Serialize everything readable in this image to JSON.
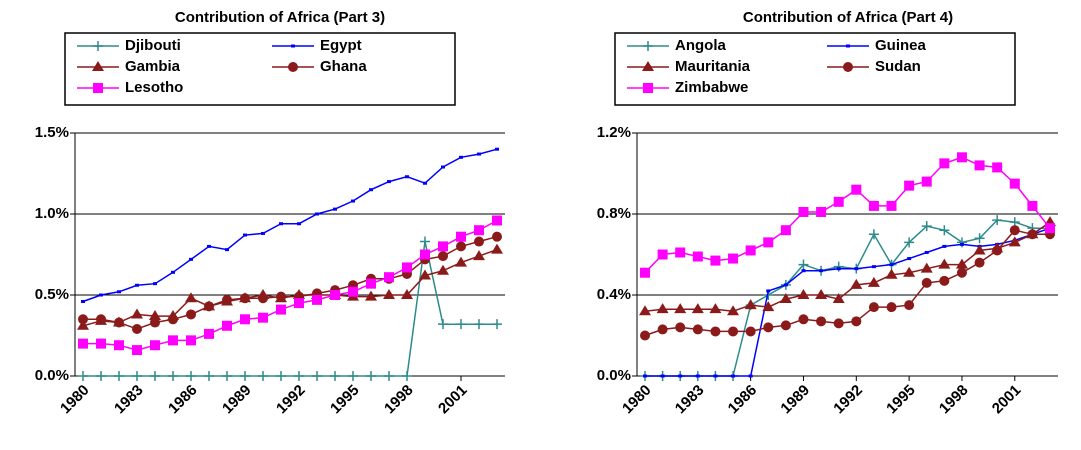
{
  "chart_data": [
    {
      "type": "line",
      "title": "Contribution of Africa (Part 3)",
      "categories": [
        "1980",
        null,
        null,
        "1983",
        null,
        null,
        "1986",
        null,
        null,
        "1989",
        null,
        null,
        "1992",
        null,
        null,
        "1995",
        null,
        null,
        "1998",
        null,
        null,
        "2001",
        null,
        null
      ],
      "ylim": [
        0,
        1.5
      ],
      "yticks": [
        {
          "value": 0,
          "label": "0.0%"
        },
        {
          "value": 0.5,
          "label": "0.5%"
        },
        {
          "value": 1.0,
          "label": "1.0%"
        },
        {
          "value": 1.5,
          "label": "1.5%"
        }
      ],
      "grid": true,
      "series": [
        {
          "name": "Djibouti",
          "color": "#2e8b8b",
          "marker": "plus",
          "values": [
            0,
            0,
            0,
            0,
            0,
            0,
            0,
            0,
            0,
            0,
            0,
            0,
            0,
            0,
            0,
            0,
            0,
            0,
            0,
            0.83,
            0.32,
            0.32,
            0.32,
            0.32
          ]
        },
        {
          "name": "Egypt",
          "color": "#0000ff",
          "marker": "dash",
          "values": [
            0.46,
            0.5,
            0.52,
            0.56,
            0.57,
            0.64,
            0.72,
            0.8,
            0.78,
            0.87,
            0.88,
            0.94,
            0.94,
            1.0,
            1.03,
            1.08,
            1.15,
            1.2,
            1.23,
            1.19,
            1.29,
            1.35,
            1.37,
            1.4
          ]
        },
        {
          "name": "Gambia",
          "color": "#8b1a1a",
          "marker": "triangle",
          "values": [
            0.31,
            0.34,
            0.33,
            0.38,
            0.37,
            0.37,
            0.48,
            0.43,
            0.46,
            0.48,
            0.5,
            0.48,
            0.5,
            0.5,
            0.5,
            0.49,
            0.49,
            0.5,
            0.5,
            0.62,
            0.65,
            0.7,
            0.74,
            0.78
          ]
        },
        {
          "name": "Ghana",
          "color": "#8b1a1a",
          "marker": "circle",
          "values": [
            0.35,
            0.35,
            0.33,
            0.29,
            0.33,
            0.35,
            0.38,
            0.43,
            0.47,
            0.48,
            0.48,
            0.49,
            0.49,
            0.51,
            0.53,
            0.56,
            0.6,
            0.6,
            0.63,
            0.72,
            0.74,
            0.8,
            0.83,
            0.86
          ]
        },
        {
          "name": "Lesotho",
          "color": "#ff00ff",
          "marker": "square",
          "values": [
            0.2,
            0.2,
            0.19,
            0.16,
            0.19,
            0.22,
            0.22,
            0.26,
            0.31,
            0.35,
            0.36,
            0.41,
            0.45,
            0.47,
            0.5,
            0.52,
            0.57,
            0.61,
            0.67,
            0.75,
            0.8,
            0.86,
            0.9,
            0.96
          ]
        }
      ]
    },
    {
      "type": "line",
      "title": "Contribution of Africa (Part 4)",
      "categories": [
        "1980",
        null,
        null,
        "1983",
        null,
        null,
        "1986",
        null,
        null,
        "1989",
        null,
        null,
        "1992",
        null,
        null,
        "1995",
        null,
        null,
        "1998",
        null,
        null,
        "2001",
        null,
        null
      ],
      "ylim": [
        0,
        1.2
      ],
      "yticks": [
        {
          "value": 0,
          "label": "0.0%"
        },
        {
          "value": 0.4,
          "label": "0.4%"
        },
        {
          "value": 0.8,
          "label": "0.8%"
        },
        {
          "value": 1.2,
          "label": "1.2%"
        }
      ],
      "grid": true,
      "series": [
        {
          "name": "Angola",
          "color": "#2e8b8b",
          "marker": "plus",
          "values": [
            0,
            0,
            0,
            0,
            0,
            0,
            0.35,
            0.4,
            0.45,
            0.55,
            0.52,
            0.54,
            0.53,
            0.7,
            0.55,
            0.66,
            0.74,
            0.72,
            0.66,
            0.68,
            0.77,
            0.76,
            0.73,
            0.73
          ]
        },
        {
          "name": "Guinea",
          "color": "#0000ff",
          "marker": "dash",
          "values": [
            0,
            0,
            0,
            0,
            0,
            0,
            0,
            0.42,
            0.45,
            0.52,
            0.52,
            0.53,
            0.53,
            0.54,
            0.55,
            0.58,
            0.61,
            0.64,
            0.65,
            0.64,
            0.65,
            0.67,
            0.7,
            0.73
          ]
        },
        {
          "name": "Mauritania",
          "color": "#8b1a1a",
          "marker": "triangle",
          "values": [
            0.32,
            0.33,
            0.33,
            0.33,
            0.33,
            0.32,
            0.35,
            0.34,
            0.38,
            0.4,
            0.4,
            0.38,
            0.45,
            0.46,
            0.5,
            0.51,
            0.53,
            0.55,
            0.55,
            0.62,
            0.63,
            0.66,
            0.7,
            0.76
          ]
        },
        {
          "name": "Sudan",
          "color": "#8b1a1a",
          "marker": "circle",
          "values": [
            0.2,
            0.23,
            0.24,
            0.23,
            0.22,
            0.22,
            0.22,
            0.24,
            0.25,
            0.28,
            0.27,
            0.26,
            0.27,
            0.34,
            0.34,
            0.35,
            0.46,
            0.47,
            0.51,
            0.56,
            0.62,
            0.72,
            0.7,
            0.7
          ]
        },
        {
          "name": "Zimbabwe",
          "color": "#ff00ff",
          "marker": "square",
          "values": [
            0.51,
            0.6,
            0.61,
            0.59,
            0.57,
            0.58,
            0.62,
            0.66,
            0.72,
            0.81,
            0.81,
            0.86,
            0.92,
            0.84,
            0.84,
            0.94,
            0.96,
            1.05,
            1.08,
            1.04,
            1.03,
            0.95,
            0.84,
            0.73
          ]
        }
      ]
    }
  ]
}
